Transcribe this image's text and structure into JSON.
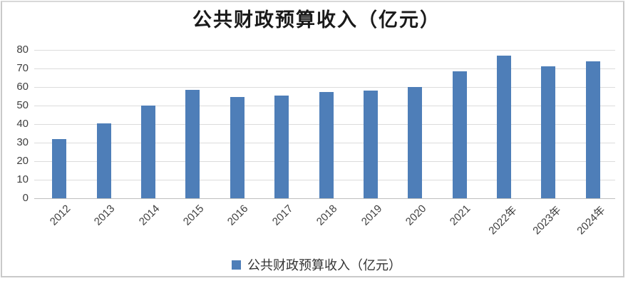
{
  "chart_data": {
    "type": "bar",
    "title": "公共财政预算收入（亿元）",
    "categories": [
      "2012",
      "2013",
      "2014",
      "2015",
      "2016",
      "2017",
      "2018",
      "2019",
      "2020",
      "2021",
      "2022年",
      "2023年",
      "2024年"
    ],
    "values": [
      32,
      40.5,
      50,
      58.5,
      54.5,
      55.5,
      57.5,
      58,
      60,
      68.5,
      77,
      71,
      74
    ],
    "xlabel": "",
    "ylabel": "",
    "ylim": [
      0,
      80
    ],
    "yticks": [
      0,
      10,
      20,
      30,
      40,
      50,
      60,
      70,
      80
    ],
    "grid": "horizontal",
    "legend": {
      "label": "公共财政预算收入（亿元）",
      "position": "bottom"
    },
    "colors": {
      "bar": "#4e7eb8",
      "gridline": "#dcdcdc",
      "axis_line": "#bfbfbf",
      "tick_label": "#404040",
      "title": "#1a1a1a"
    }
  }
}
